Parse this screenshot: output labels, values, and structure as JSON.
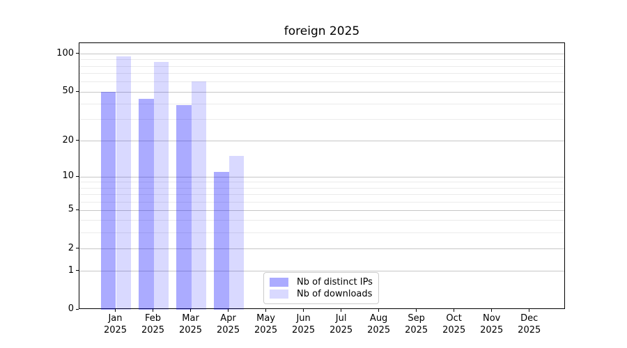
{
  "title": "foreign 2025",
  "chart_data": {
    "type": "bar",
    "title": "foreign 2025",
    "xlabel": "",
    "ylabel": "",
    "y_scale": "log(1+x)",
    "ylim": [
      0,
      122
    ],
    "grid": "on",
    "legend_position": "bottom-center-inside",
    "categories": [
      "Jan",
      "Feb",
      "Mar",
      "Apr",
      "May",
      "Jun",
      "Jul",
      "Aug",
      "Sep",
      "Oct",
      "Nov",
      "Dec"
    ],
    "category_year": "2025",
    "series": [
      {
        "name": "Nb of distinct IPs",
        "color": "rgba(0,0,255,0.33)",
        "values": [
          50,
          44,
          39,
          11,
          0,
          0,
          0,
          0,
          0,
          0,
          0,
          0
        ]
      },
      {
        "name": "Nb of downloads",
        "color": "rgba(0,0,255,0.15)",
        "values": [
          96,
          87,
          61,
          15,
          0,
          0,
          0,
          0,
          0,
          0,
          0,
          0
        ]
      }
    ],
    "y_major_ticks": [
      100,
      50,
      20,
      10,
      5,
      2,
      1,
      0
    ],
    "y_minor_gridlines": [
      90,
      80,
      70,
      60,
      40,
      30,
      9,
      8,
      7,
      6,
      4,
      3
    ]
  },
  "colors": {
    "spine": "#000000",
    "major_grid": "#c6c6c6",
    "minor_grid": "#ebebeb",
    "legend_border": "#cccccc"
  }
}
